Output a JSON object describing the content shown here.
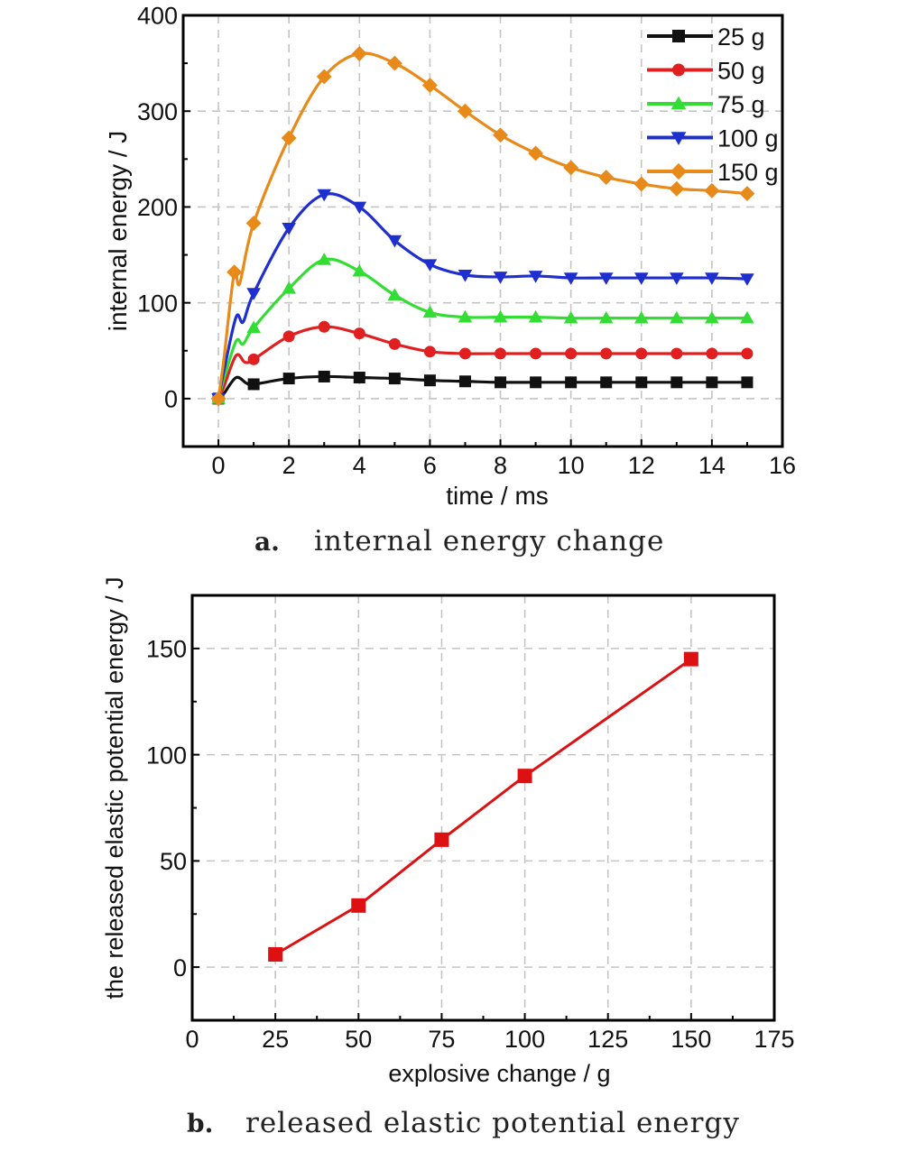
{
  "chart_data": [
    {
      "type": "line",
      "xlabel": "time / ms",
      "ylabel": "internal energy / J",
      "xlim": [
        -1,
        16
      ],
      "ylim": [
        -50,
        400
      ],
      "x_ticks": [
        0,
        2,
        4,
        6,
        8,
        10,
        12,
        14,
        16
      ],
      "y_ticks": [
        0,
        100,
        200,
        300,
        400
      ],
      "grid": true,
      "legend_position": "top-right",
      "caption_letter": "a.",
      "caption_text": "internal energy change",
      "series": [
        {
          "name": "25 g",
          "color": "#111111",
          "marker": "square",
          "points": [
            [
              0,
              0
            ],
            [
              0.15,
              5
            ],
            [
              0.5,
              22
            ],
            [
              0.8,
              16
            ],
            [
              1,
              15
            ],
            [
              2,
              21
            ],
            [
              3,
              23
            ],
            [
              4,
              22
            ],
            [
              5,
              21
            ],
            [
              6,
              19
            ],
            [
              7,
              18
            ],
            [
              8,
              17
            ],
            [
              9,
              17
            ],
            [
              10,
              17
            ],
            [
              11,
              17
            ],
            [
              12,
              17
            ],
            [
              13,
              17
            ],
            [
              14,
              17
            ],
            [
              15,
              17
            ]
          ],
          "marker_x": [
            0,
            1,
            2,
            3,
            4,
            5,
            6,
            7,
            8,
            9,
            10,
            11,
            12,
            13,
            14,
            15
          ]
        },
        {
          "name": "50 g",
          "color": "#e02020",
          "marker": "circle",
          "points": [
            [
              0,
              0
            ],
            [
              0.15,
              12
            ],
            [
              0.5,
              45
            ],
            [
              0.75,
              38
            ],
            [
              1,
              41
            ],
            [
              2,
              65
            ],
            [
              3,
              75
            ],
            [
              4,
              68
            ],
            [
              5,
              57
            ],
            [
              6,
              49
            ],
            [
              7,
              47
            ],
            [
              8,
              47
            ],
            [
              9,
              47
            ],
            [
              10,
              47
            ],
            [
              11,
              47
            ],
            [
              12,
              47
            ],
            [
              13,
              47
            ],
            [
              14,
              47
            ],
            [
              15,
              47
            ]
          ],
          "marker_x": [
            0,
            1,
            2,
            3,
            4,
            5,
            6,
            7,
            8,
            9,
            10,
            11,
            12,
            13,
            14,
            15
          ]
        },
        {
          "name": "75 g",
          "color": "#33dd33",
          "marker": "triangle-up",
          "points": [
            [
              0,
              0
            ],
            [
              0.15,
              20
            ],
            [
              0.5,
              60
            ],
            [
              0.7,
              57
            ],
            [
              1,
              74
            ],
            [
              2,
              115
            ],
            [
              3,
              145
            ],
            [
              4,
              133
            ],
            [
              5,
              108
            ],
            [
              6,
              90
            ],
            [
              7,
              85
            ],
            [
              8,
              85
            ],
            [
              9,
              85
            ],
            [
              10,
              84
            ],
            [
              11,
              84
            ],
            [
              12,
              84
            ],
            [
              13,
              84
            ],
            [
              14,
              84
            ],
            [
              15,
              84
            ]
          ],
          "marker_x": [
            0,
            1,
            2,
            3,
            4,
            5,
            6,
            7,
            8,
            9,
            10,
            11,
            12,
            13,
            14,
            15
          ]
        },
        {
          "name": "100 g",
          "color": "#1f2fcf",
          "marker": "triangle-down",
          "points": [
            [
              0,
              0
            ],
            [
              0.15,
              28
            ],
            [
              0.5,
              85
            ],
            [
              0.7,
              80
            ],
            [
              1,
              110
            ],
            [
              2,
              178
            ],
            [
              3,
              213
            ],
            [
              4,
              200
            ],
            [
              5,
              165
            ],
            [
              6,
              140
            ],
            [
              7,
              129
            ],
            [
              8,
              127
            ],
            [
              9,
              128
            ],
            [
              10,
              126
            ],
            [
              11,
              126
            ],
            [
              12,
              126
            ],
            [
              13,
              126
            ],
            [
              14,
              126
            ],
            [
              15,
              125
            ]
          ],
          "marker_x": [
            0,
            1,
            2,
            3,
            4,
            5,
            6,
            7,
            8,
            9,
            10,
            11,
            12,
            13,
            14,
            15
          ]
        },
        {
          "name": "150 g",
          "color": "#e88a1a",
          "marker": "diamond",
          "points": [
            [
              0,
              0
            ],
            [
              0.15,
              40
            ],
            [
              0.45,
              132
            ],
            [
              0.6,
              120
            ],
            [
              1,
              183
            ],
            [
              2,
              272
            ],
            [
              3,
              336
            ],
            [
              4,
              360
            ],
            [
              5,
              350
            ],
            [
              6,
              327
            ],
            [
              7,
              300
            ],
            [
              8,
              275
            ],
            [
              9,
              256
            ],
            [
              10,
              241
            ],
            [
              11,
              231
            ],
            [
              12,
              224
            ],
            [
              13,
              219
            ],
            [
              14,
              217
            ],
            [
              15,
              214
            ]
          ],
          "marker_x": [
            0,
            0.45,
            1,
            2,
            3,
            4,
            5,
            6,
            7,
            8,
            9,
            10,
            11,
            12,
            13,
            14,
            15
          ]
        }
      ]
    },
    {
      "type": "line",
      "xlabel": "explosive change / g",
      "ylabel": "the released elastic potential energy / J",
      "xlim": [
        0,
        175
      ],
      "ylim": [
        -25,
        175
      ],
      "x_ticks": [
        0,
        25,
        50,
        75,
        100,
        125,
        150,
        175
      ],
      "y_ticks": [
        0,
        50,
        100,
        150
      ],
      "grid": true,
      "caption_letter": "b.",
      "caption_text": "released elastic potential energy",
      "series": [
        {
          "color": "#dd1111",
          "marker": "square",
          "x": [
            25,
            50,
            75,
            100,
            150
          ],
          "y": [
            6,
            29,
            60,
            90,
            145
          ]
        }
      ]
    }
  ]
}
